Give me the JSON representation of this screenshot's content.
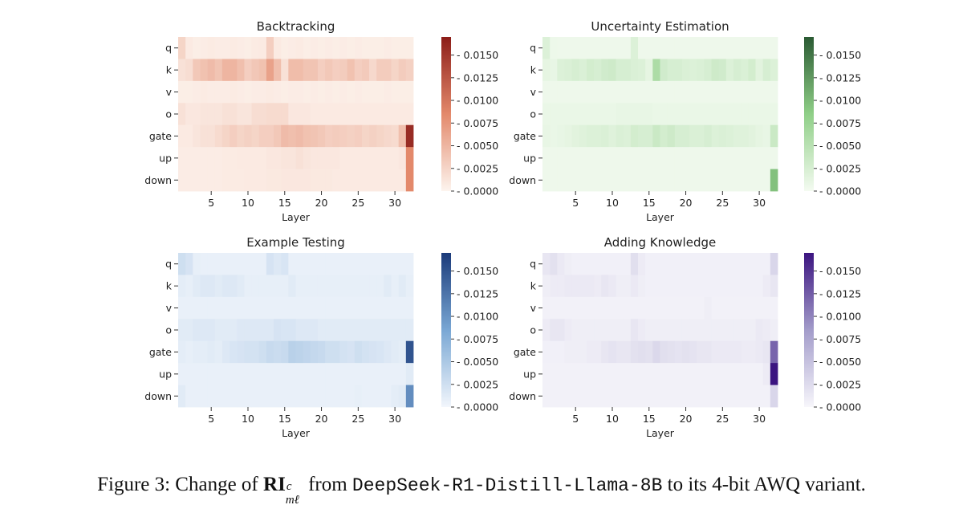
{
  "caption": {
    "prefix": "Figure 3: Change of",
    "symbol": "RI",
    "sup": "c",
    "sub": "mℓ",
    "middle": "from",
    "model": "DeepSeek-R1-Distill-Llama-8B",
    "suffix": "to its 4-bit AWQ variant."
  },
  "chart_data": [
    {
      "type": "heatmap",
      "title": "Backtracking",
      "xlabel": "Layer",
      "colormap": "Reds",
      "colors": {
        "low": "#fdf4ee",
        "mid": "#e3896b",
        "high": "#8c1d18"
      },
      "x_ticks": [
        "5",
        "10",
        "15",
        "20",
        "25",
        "30"
      ],
      "rows": [
        "q",
        "k",
        "v",
        "o",
        "gate",
        "up",
        "down"
      ],
      "columns": 32,
      "vmin": 0,
      "vmax": 0.017,
      "colorbar_ticks": [
        "0.0000",
        "0.0025",
        "0.0050",
        "0.0075",
        "0.0100",
        "0.0125",
        "0.0150"
      ],
      "values": [
        [
          0.0025,
          0.0008,
          0.0005,
          0.0006,
          0.0007,
          0.0006,
          0.0006,
          0.0007,
          0.0006,
          0.0005,
          0.0007,
          0.0008,
          0.003,
          0.0008,
          0.0005,
          0.0006,
          0.0007,
          0.0005,
          0.0006,
          0.0005,
          0.0006,
          0.0005,
          0.0006,
          0.0005,
          0.0006,
          0.0005,
          0.0005,
          0.0005,
          0.0006,
          0.0005,
          0.0005,
          0.0005
        ],
        [
          0.0015,
          0.0018,
          0.0035,
          0.004,
          0.0045,
          0.0038,
          0.005,
          0.005,
          0.0042,
          0.003,
          0.0036,
          0.004,
          0.0065,
          0.0042,
          0.0015,
          0.0044,
          0.0044,
          0.0038,
          0.0038,
          0.003,
          0.0035,
          0.003,
          0.0032,
          0.004,
          0.003,
          0.0033,
          0.0022,
          0.0032,
          0.0032,
          0.0025,
          0.0032,
          0.0028
        ],
        [
          0.0005,
          0.0005,
          0.0006,
          0.0007,
          0.0006,
          0.0006,
          0.0006,
          0.0007,
          0.0006,
          0.0005,
          0.0006,
          0.0006,
          0.0007,
          0.0006,
          0.0005,
          0.0006,
          0.0006,
          0.0005,
          0.0006,
          0.0005,
          0.0006,
          0.0005,
          0.0006,
          0.0005,
          0.0006,
          0.0005,
          0.0005,
          0.0005,
          0.0006,
          0.0005,
          0.0005,
          0.0005
        ],
        [
          0.0015,
          0.001,
          0.001,
          0.0012,
          0.0012,
          0.0012,
          0.0015,
          0.0015,
          0.0012,
          0.0012,
          0.0018,
          0.0018,
          0.002,
          0.002,
          0.002,
          0.001,
          0.001,
          0.001,
          0.0008,
          0.0008,
          0.0008,
          0.0008,
          0.0008,
          0.0008,
          0.0008,
          0.0008,
          0.0008,
          0.0008,
          0.0008,
          0.0008,
          0.0008,
          0.0008
        ],
        [
          0.0008,
          0.0008,
          0.0012,
          0.0015,
          0.0015,
          0.002,
          0.0025,
          0.003,
          0.0025,
          0.0028,
          0.0025,
          0.003,
          0.003,
          0.0035,
          0.0045,
          0.0042,
          0.0045,
          0.004,
          0.0038,
          0.0035,
          0.003,
          0.0032,
          0.003,
          0.0028,
          0.003,
          0.0025,
          0.0028,
          0.0025,
          0.0022,
          0.002,
          0.0042,
          0.0158
        ],
        [
          0.0006,
          0.0006,
          0.0006,
          0.0006,
          0.0006,
          0.0006,
          0.0007,
          0.0007,
          0.0008,
          0.0008,
          0.0008,
          0.0008,
          0.001,
          0.001,
          0.0012,
          0.0012,
          0.0015,
          0.0012,
          0.001,
          0.001,
          0.001,
          0.001,
          0.0008,
          0.0008,
          0.0008,
          0.0008,
          0.0008,
          0.0008,
          0.0008,
          0.0008,
          0.001,
          0.0085
        ],
        [
          0.0006,
          0.0006,
          0.0006,
          0.0006,
          0.0006,
          0.0006,
          0.0007,
          0.0007,
          0.0007,
          0.0008,
          0.0008,
          0.0008,
          0.0009,
          0.0009,
          0.001,
          0.001,
          0.001,
          0.001,
          0.0009,
          0.0009,
          0.0009,
          0.0008,
          0.0008,
          0.0008,
          0.0008,
          0.0008,
          0.0008,
          0.0008,
          0.0008,
          0.0008,
          0.0008,
          0.0085
        ]
      ]
    },
    {
      "type": "heatmap",
      "title": "Uncertainty Estimation",
      "xlabel": "Layer",
      "colormap": "Greens",
      "colors": {
        "low": "#f4fbf1",
        "mid": "#8fcf87",
        "high": "#2a5a33"
      },
      "x_ticks": [
        "5",
        "10",
        "15",
        "20",
        "25",
        "30"
      ],
      "rows": [
        "q",
        "k",
        "v",
        "o",
        "gate",
        "up",
        "down"
      ],
      "columns": 32,
      "vmin": 0,
      "vmax": 0.017,
      "colorbar_ticks": [
        "0.0000",
        "0.0025",
        "0.0050",
        "0.0075",
        "0.0100",
        "0.0125",
        "0.0150"
      ],
      "values": [
        [
          0.002,
          0.0006,
          0.0005,
          0.0005,
          0.0005,
          0.0005,
          0.0005,
          0.0005,
          0.0005,
          0.0005,
          0.0005,
          0.0005,
          0.002,
          0.0005,
          0.0005,
          0.0005,
          0.0005,
          0.0005,
          0.0005,
          0.0005,
          0.0005,
          0.0005,
          0.0005,
          0.0005,
          0.0005,
          0.0005,
          0.0005,
          0.0005,
          0.0005,
          0.0005,
          0.0005,
          0.0005
        ],
        [
          0.0012,
          0.001,
          0.002,
          0.0022,
          0.0025,
          0.0022,
          0.0028,
          0.0025,
          0.003,
          0.0032,
          0.0025,
          0.0025,
          0.0022,
          0.002,
          0.0012,
          0.006,
          0.003,
          0.0025,
          0.0025,
          0.0022,
          0.002,
          0.0022,
          0.0025,
          0.0032,
          0.003,
          0.002,
          0.0025,
          0.0022,
          0.0028,
          0.0015,
          0.0025,
          0.002
        ],
        [
          0.0005,
          0.0005,
          0.0005,
          0.0005,
          0.0005,
          0.0005,
          0.0005,
          0.0005,
          0.0005,
          0.0005,
          0.0005,
          0.0005,
          0.0005,
          0.0005,
          0.0005,
          0.0005,
          0.0005,
          0.0005,
          0.0005,
          0.0005,
          0.0005,
          0.0005,
          0.0005,
          0.0005,
          0.0005,
          0.0005,
          0.0005,
          0.0005,
          0.0005,
          0.0005,
          0.0005,
          0.0005
        ],
        [
          0.0008,
          0.0008,
          0.0008,
          0.0008,
          0.0008,
          0.0008,
          0.0008,
          0.0008,
          0.0008,
          0.0008,
          0.001,
          0.001,
          0.001,
          0.001,
          0.001,
          0.0008,
          0.0008,
          0.0008,
          0.0008,
          0.0008,
          0.0008,
          0.0008,
          0.0008,
          0.0008,
          0.0008,
          0.0008,
          0.0008,
          0.0008,
          0.0008,
          0.0008,
          0.0008,
          0.0008
        ],
        [
          0.001,
          0.0008,
          0.001,
          0.0012,
          0.0015,
          0.0018,
          0.002,
          0.002,
          0.0022,
          0.0018,
          0.0022,
          0.002,
          0.0028,
          0.0025,
          0.0025,
          0.0035,
          0.0028,
          0.0032,
          0.0025,
          0.0025,
          0.0022,
          0.0022,
          0.0025,
          0.002,
          0.0022,
          0.002,
          0.0018,
          0.0018,
          0.0015,
          0.0012,
          0.001,
          0.0035
        ],
        [
          0.0005,
          0.0005,
          0.0005,
          0.0005,
          0.0005,
          0.0005,
          0.0005,
          0.0005,
          0.0005,
          0.0005,
          0.0005,
          0.0005,
          0.0005,
          0.0005,
          0.0005,
          0.0005,
          0.0005,
          0.0005,
          0.0005,
          0.0005,
          0.0005,
          0.0005,
          0.0005,
          0.0005,
          0.0005,
          0.0005,
          0.0005,
          0.0005,
          0.0005,
          0.0005,
          0.0005,
          0.0005
        ],
        [
          0.0005,
          0.0005,
          0.0005,
          0.0005,
          0.0005,
          0.0005,
          0.0005,
          0.0005,
          0.0005,
          0.0005,
          0.0005,
          0.0005,
          0.0005,
          0.0005,
          0.0005,
          0.0005,
          0.0005,
          0.0005,
          0.0005,
          0.0005,
          0.0005,
          0.0005,
          0.0005,
          0.0005,
          0.0005,
          0.0005,
          0.0005,
          0.0005,
          0.0005,
          0.0005,
          0.0005,
          0.0095
        ]
      ]
    },
    {
      "type": "heatmap",
      "title": "Example Testing",
      "xlabel": "Layer",
      "colormap": "Blues",
      "colors": {
        "low": "#f2f6fc",
        "mid": "#79a7d4",
        "high": "#1b3a7a"
      },
      "x_ticks": [
        "5",
        "10",
        "15",
        "20",
        "25",
        "30"
      ],
      "rows": [
        "q",
        "k",
        "v",
        "o",
        "gate",
        "up",
        "down"
      ],
      "columns": 32,
      "vmin": 0,
      "vmax": 0.017,
      "colorbar_ticks": [
        "0.0000",
        "0.0025",
        "0.0050",
        "0.0075",
        "0.0100",
        "0.0125",
        "0.0150"
      ],
      "values": [
        [
          0.0025,
          0.002,
          0.0008,
          0.0006,
          0.0006,
          0.0006,
          0.0006,
          0.0006,
          0.0006,
          0.0006,
          0.0006,
          0.0006,
          0.002,
          0.0015,
          0.0018,
          0.0006,
          0.0006,
          0.0006,
          0.0006,
          0.0006,
          0.0006,
          0.0006,
          0.0006,
          0.0006,
          0.0006,
          0.0006,
          0.0006,
          0.0006,
          0.0006,
          0.0006,
          0.0006,
          0.0006
        ],
        [
          0.001,
          0.0008,
          0.0012,
          0.0015,
          0.0015,
          0.0012,
          0.0015,
          0.0015,
          0.0012,
          0.0008,
          0.0008,
          0.0008,
          0.0008,
          0.0008,
          0.0008,
          0.0012,
          0.0008,
          0.0008,
          0.0008,
          0.0008,
          0.0008,
          0.0008,
          0.0008,
          0.0008,
          0.0008,
          0.0008,
          0.0008,
          0.0008,
          0.0012,
          0.0008,
          0.0012,
          0.0008
        ],
        [
          0.0006,
          0.0006,
          0.0006,
          0.0006,
          0.0006,
          0.0006,
          0.0006,
          0.0006,
          0.0006,
          0.0006,
          0.0006,
          0.0006,
          0.0006,
          0.0006,
          0.0006,
          0.0006,
          0.0006,
          0.0006,
          0.0006,
          0.0006,
          0.0006,
          0.0006,
          0.0006,
          0.0006,
          0.0006,
          0.0006,
          0.0006,
          0.0006,
          0.0006,
          0.0006,
          0.0006,
          0.0006
        ],
        [
          0.0012,
          0.0012,
          0.0015,
          0.0015,
          0.0015,
          0.0012,
          0.0012,
          0.0012,
          0.0015,
          0.0015,
          0.0015,
          0.0015,
          0.0015,
          0.002,
          0.0018,
          0.0018,
          0.0015,
          0.0015,
          0.0015,
          0.0012,
          0.0012,
          0.0012,
          0.0012,
          0.0012,
          0.0012,
          0.0012,
          0.0012,
          0.0012,
          0.0012,
          0.0012,
          0.0012,
          0.0012
        ],
        [
          0.001,
          0.0008,
          0.001,
          0.001,
          0.0012,
          0.001,
          0.0015,
          0.0018,
          0.002,
          0.0022,
          0.0022,
          0.0025,
          0.003,
          0.0028,
          0.003,
          0.004,
          0.0038,
          0.0035,
          0.0032,
          0.003,
          0.0025,
          0.0025,
          0.0022,
          0.002,
          0.0025,
          0.0022,
          0.002,
          0.0018,
          0.0015,
          0.0012,
          0.001,
          0.015
        ],
        [
          0.0006,
          0.0006,
          0.0006,
          0.0006,
          0.0006,
          0.0006,
          0.0006,
          0.0006,
          0.0006,
          0.0006,
          0.0006,
          0.0006,
          0.0006,
          0.0006,
          0.0006,
          0.0006,
          0.0006,
          0.0006,
          0.0006,
          0.0006,
          0.0006,
          0.0006,
          0.0006,
          0.0006,
          0.0006,
          0.0006,
          0.0006,
          0.0006,
          0.0006,
          0.0006,
          0.0006,
          0.0012
        ],
        [
          0.0012,
          0.0006,
          0.0006,
          0.0006,
          0.0006,
          0.0006,
          0.0006,
          0.0006,
          0.0006,
          0.0006,
          0.0006,
          0.0006,
          0.0006,
          0.0006,
          0.0006,
          0.0006,
          0.0006,
          0.0006,
          0.0006,
          0.0006,
          0.0006,
          0.0006,
          0.0006,
          0.0006,
          0.0008,
          0.0006,
          0.0006,
          0.0006,
          0.0006,
          0.001,
          0.0012,
          0.0105
        ]
      ]
    },
    {
      "type": "heatmap",
      "title": "Adding Knowledge",
      "xlabel": "Layer",
      "colormap": "Purples",
      "colors": {
        "low": "#f7f6fb",
        "mid": "#a39cca",
        "high": "#3b1480"
      },
      "x_ticks": [
        "5",
        "10",
        "15",
        "20",
        "25",
        "30"
      ],
      "rows": [
        "q",
        "k",
        "v",
        "o",
        "gate",
        "up",
        "down"
      ],
      "columns": 32,
      "vmin": 0,
      "vmax": 0.017,
      "colorbar_ticks": [
        "0.0000",
        "0.0025",
        "0.0050",
        "0.0075",
        "0.0100",
        "0.0125",
        "0.0150"
      ],
      "values": [
        [
          0.0015,
          0.002,
          0.0012,
          0.0008,
          0.0006,
          0.0006,
          0.0006,
          0.0006,
          0.0006,
          0.0006,
          0.0006,
          0.0006,
          0.0022,
          0.001,
          0.0006,
          0.0006,
          0.0006,
          0.0006,
          0.0006,
          0.0006,
          0.0006,
          0.0006,
          0.0006,
          0.0006,
          0.0006,
          0.0006,
          0.0006,
          0.0006,
          0.0006,
          0.0006,
          0.0006,
          0.003
        ],
        [
          0.0008,
          0.001,
          0.001,
          0.0012,
          0.0012,
          0.0012,
          0.0012,
          0.001,
          0.0015,
          0.0012,
          0.0008,
          0.0008,
          0.0012,
          0.0008,
          0.0006,
          0.0006,
          0.0006,
          0.0006,
          0.0006,
          0.0006,
          0.0006,
          0.0006,
          0.0006,
          0.0006,
          0.0006,
          0.0006,
          0.0006,
          0.0006,
          0.0006,
          0.0006,
          0.001,
          0.0015
        ],
        [
          0.0005,
          0.0005,
          0.0005,
          0.0005,
          0.0005,
          0.0005,
          0.0005,
          0.0005,
          0.0005,
          0.0005,
          0.0005,
          0.0005,
          0.0005,
          0.0005,
          0.0005,
          0.0005,
          0.0005,
          0.0005,
          0.0005,
          0.0005,
          0.0005,
          0.0005,
          0.0008,
          0.0005,
          0.0005,
          0.0005,
          0.0005,
          0.0005,
          0.0005,
          0.0005,
          0.0005,
          0.0005
        ],
        [
          0.001,
          0.0015,
          0.0015,
          0.001,
          0.0008,
          0.0008,
          0.0008,
          0.0008,
          0.0008,
          0.0008,
          0.0008,
          0.0008,
          0.0015,
          0.001,
          0.0008,
          0.0008,
          0.0008,
          0.0008,
          0.0008,
          0.0008,
          0.0008,
          0.0008,
          0.0008,
          0.0008,
          0.0008,
          0.0008,
          0.0008,
          0.0008,
          0.0008,
          0.0012,
          0.001,
          0.0008
        ],
        [
          0.0006,
          0.0006,
          0.0006,
          0.0008,
          0.0008,
          0.0008,
          0.001,
          0.001,
          0.0015,
          0.0018,
          0.0015,
          0.0015,
          0.002,
          0.0022,
          0.002,
          0.0028,
          0.0022,
          0.002,
          0.0018,
          0.002,
          0.0018,
          0.0015,
          0.0015,
          0.0012,
          0.0012,
          0.0012,
          0.0012,
          0.001,
          0.001,
          0.0012,
          0.0015,
          0.012
        ],
        [
          0.0005,
          0.0005,
          0.0005,
          0.0005,
          0.0005,
          0.0005,
          0.0005,
          0.0005,
          0.0005,
          0.0005,
          0.0005,
          0.0005,
          0.0005,
          0.0005,
          0.0005,
          0.0005,
          0.0005,
          0.0005,
          0.0005,
          0.0005,
          0.0005,
          0.0005,
          0.0005,
          0.0005,
          0.0005,
          0.0005,
          0.0005,
          0.0005,
          0.0005,
          0.0005,
          0.001,
          0.017
        ],
        [
          0.0005,
          0.0005,
          0.0005,
          0.0005,
          0.0005,
          0.0005,
          0.0005,
          0.0005,
          0.0005,
          0.0005,
          0.0005,
          0.0005,
          0.0005,
          0.0005,
          0.0005,
          0.0005,
          0.0005,
          0.0005,
          0.0005,
          0.0005,
          0.0005,
          0.0005,
          0.0005,
          0.0005,
          0.0005,
          0.0005,
          0.0005,
          0.0005,
          0.0005,
          0.0005,
          0.0005,
          0.003
        ]
      ]
    }
  ]
}
